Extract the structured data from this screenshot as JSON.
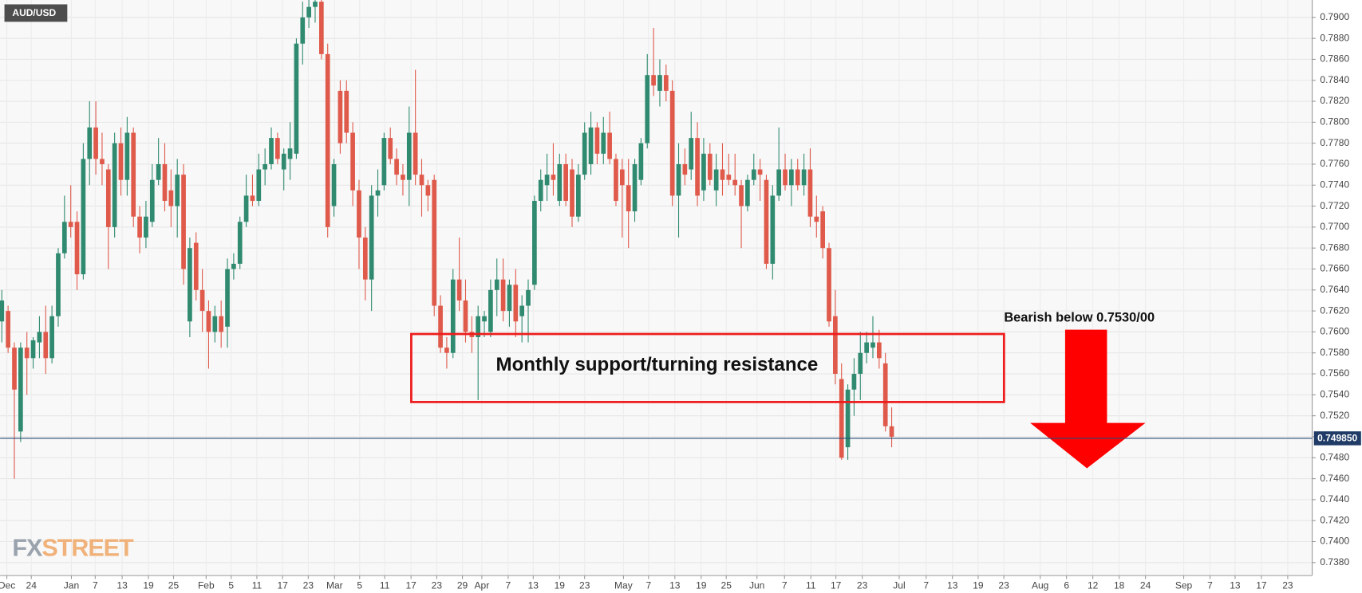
{
  "chart_data": {
    "type": "candlestick",
    "symbol": "AUD/USD",
    "up_color": "#2f8a6f",
    "down_color": "#df5a4b",
    "grid": true,
    "xlim": [
      -0.28,
      209.1
    ],
    "ylim": [
      0.73676,
      0.79166
    ],
    "yticks": [
      {
        "value": 0.738,
        "label": "0.7380"
      },
      {
        "value": 0.74,
        "label": "0.7400"
      },
      {
        "value": 0.742,
        "label": "0.7420"
      },
      {
        "value": 0.744,
        "label": "0.7440"
      },
      {
        "value": 0.746,
        "label": "0.7460"
      },
      {
        "value": 0.748,
        "label": "0.7480"
      },
      {
        "value": 0.75,
        "label": "0.7500"
      },
      {
        "value": 0.752,
        "label": "0.7520"
      },
      {
        "value": 0.754,
        "label": "0.7540"
      },
      {
        "value": 0.756,
        "label": "0.7560"
      },
      {
        "value": 0.758,
        "label": "0.7580"
      },
      {
        "value": 0.76,
        "label": "0.7600"
      },
      {
        "value": 0.762,
        "label": "0.7620"
      },
      {
        "value": 0.764,
        "label": "0.7640"
      },
      {
        "value": 0.766,
        "label": "0.7660"
      },
      {
        "value": 0.768,
        "label": "0.7680"
      },
      {
        "value": 0.77,
        "label": "0.7700"
      },
      {
        "value": 0.772,
        "label": "0.7720"
      },
      {
        "value": 0.774,
        "label": "0.7740"
      },
      {
        "value": 0.776,
        "label": "0.7760"
      },
      {
        "value": 0.778,
        "label": "0.7780"
      },
      {
        "value": 0.78,
        "label": "0.7800"
      },
      {
        "value": 0.782,
        "label": "0.7820"
      },
      {
        "value": 0.784,
        "label": "0.7840"
      },
      {
        "value": 0.786,
        "label": "0.7860"
      },
      {
        "value": 0.788,
        "label": "0.7880"
      },
      {
        "value": 0.79,
        "label": "0.7900"
      }
    ],
    "xticks": [
      {
        "value": 0.8,
        "label": "Dec"
      },
      {
        "value": 4.7,
        "label": "24"
      },
      {
        "value": 11.1,
        "label": "Jan"
      },
      {
        "value": 14.9,
        "label": "7"
      },
      {
        "value": 19.2,
        "label": "13"
      },
      {
        "value": 23.4,
        "label": "19"
      },
      {
        "value": 27.4,
        "label": "25"
      },
      {
        "value": 32.6,
        "label": "Feb"
      },
      {
        "value": 36.6,
        "label": "5"
      },
      {
        "value": 40.7,
        "label": "11"
      },
      {
        "value": 44.8,
        "label": "17"
      },
      {
        "value": 48.9,
        "label": "23"
      },
      {
        "value": 53.1,
        "label": "Mar"
      },
      {
        "value": 57.1,
        "label": "5"
      },
      {
        "value": 61.1,
        "label": "11"
      },
      {
        "value": 65.3,
        "label": "17"
      },
      {
        "value": 69.4,
        "label": "23"
      },
      {
        "value": 73.5,
        "label": "29"
      },
      {
        "value": 76.6,
        "label": "Apr"
      },
      {
        "value": 80.8,
        "label": "7"
      },
      {
        "value": 84.8,
        "label": "13"
      },
      {
        "value": 89.0,
        "label": "19"
      },
      {
        "value": 93.0,
        "label": "23"
      },
      {
        "value": 99.2,
        "label": "May"
      },
      {
        "value": 103.2,
        "label": "7"
      },
      {
        "value": 107.4,
        "label": "13"
      },
      {
        "value": 111.6,
        "label": "19"
      },
      {
        "value": 115.6,
        "label": "25"
      },
      {
        "value": 120.5,
        "label": "Jun"
      },
      {
        "value": 124.9,
        "label": "7"
      },
      {
        "value": 129.1,
        "label": "11"
      },
      {
        "value": 133.1,
        "label": "17"
      },
      {
        "value": 137.3,
        "label": "23"
      },
      {
        "value": 143.2,
        "label": "Jul"
      },
      {
        "value": 147.5,
        "label": "7"
      },
      {
        "value": 151.7,
        "label": "13"
      },
      {
        "value": 155.8,
        "label": "19"
      },
      {
        "value": 159.9,
        "label": "23"
      },
      {
        "value": 165.7,
        "label": "Aug"
      },
      {
        "value": 169.9,
        "label": "6"
      },
      {
        "value": 174.1,
        "label": "12"
      },
      {
        "value": 178.3,
        "label": "18"
      },
      {
        "value": 182.5,
        "label": "24"
      },
      {
        "value": 188.6,
        "label": "Sep"
      },
      {
        "value": 192.8,
        "label": "7"
      },
      {
        "value": 196.8,
        "label": "13"
      },
      {
        "value": 201.0,
        "label": "17"
      },
      {
        "value": 205.2,
        "label": "23"
      }
    ],
    "last_price": {
      "value": 0.74985,
      "label": "0.749850"
    },
    "open": [
      0.761,
      0.762,
      0.7585,
      0.7505,
      0.7585,
      0.7575,
      0.759,
      0.76,
      0.7575,
      0.7615,
      0.7675,
      0.7705,
      0.7705,
      0.7655,
      0.7765,
      0.7795,
      0.7765,
      0.7755,
      0.77,
      0.778,
      0.7745,
      0.779,
      0.771,
      0.769,
      0.7705,
      0.7745,
      0.776,
      0.7735,
      0.772,
      0.775,
      0.761,
      0.7685,
      0.764,
      0.762,
      0.76,
      0.7615,
      0.7605,
      0.766,
      0.7665,
      0.7705,
      0.773,
      0.7725,
      0.7755,
      0.776,
      0.7785,
      0.7755,
      0.7765,
      0.777,
      0.7875,
      0.79,
      0.791,
      0.7915,
      0.7865,
      0.772,
      0.783,
      0.783,
      0.779,
      0.7735,
      0.769,
      0.765,
      0.773,
      0.774,
      0.7785,
      0.7765,
      0.775,
      0.7745,
      0.779,
      0.775,
      0.774,
      0.7745,
      0.7625,
      0.7585,
      0.758,
      0.765,
      0.763,
      0.76,
      0.7595,
      0.761,
      0.76,
      0.764,
      0.765,
      0.762,
      0.7645,
      0.7615,
      0.7625,
      0.7645,
      0.7725,
      0.774,
      0.775,
      0.7725,
      0.776,
      0.7755,
      0.771,
      0.775,
      0.776,
      0.7795,
      0.777,
      0.779,
      0.7765,
      0.7755,
      0.774,
      0.7715,
      0.7745,
      0.778,
      0.7845,
      0.783,
      0.7845,
      0.783,
      0.773,
      0.776,
      0.7755,
      0.7785,
      0.7735,
      0.777,
      0.7735,
      0.7755,
      0.775,
      0.7745,
      0.774,
      0.772,
      0.7745,
      0.7755,
      0.7745,
      0.7665,
      0.773,
      0.7755,
      0.774,
      0.7755,
      0.774,
      0.7755,
      0.771,
      0.7715,
      0.768,
      0.7615,
      0.7555,
      0.749,
      0.7545,
      0.756,
      0.758,
      0.7585,
      0.759,
      0.757,
      0.751
    ],
    "high": [
      0.764,
      0.7625,
      0.759,
      0.759,
      0.76,
      0.7595,
      0.7615,
      0.7625,
      0.7625,
      0.768,
      0.773,
      0.774,
      0.7715,
      0.778,
      0.782,
      0.782,
      0.779,
      0.776,
      0.779,
      0.7795,
      0.7805,
      0.7795,
      0.772,
      0.7725,
      0.776,
      0.7785,
      0.778,
      0.7755,
      0.7765,
      0.776,
      0.769,
      0.7695,
      0.766,
      0.763,
      0.7625,
      0.763,
      0.767,
      0.7675,
      0.771,
      0.775,
      0.775,
      0.777,
      0.7775,
      0.7795,
      0.779,
      0.7775,
      0.78,
      0.788,
      0.7915,
      0.792,
      0.792,
      0.792,
      0.7875,
      0.7765,
      0.784,
      0.784,
      0.78,
      0.7745,
      0.77,
      0.774,
      0.7755,
      0.779,
      0.7795,
      0.7775,
      0.776,
      0.7815,
      0.785,
      0.7765,
      0.7745,
      0.775,
      0.7635,
      0.7595,
      0.766,
      0.769,
      0.765,
      0.7615,
      0.7625,
      0.762,
      0.765,
      0.767,
      0.767,
      0.765,
      0.766,
      0.7635,
      0.765,
      0.773,
      0.7755,
      0.777,
      0.778,
      0.777,
      0.777,
      0.7765,
      0.776,
      0.78,
      0.781,
      0.78,
      0.7805,
      0.781,
      0.777,
      0.7765,
      0.7765,
      0.7765,
      0.7785,
      0.7865,
      0.789,
      0.786,
      0.7855,
      0.784,
      0.778,
      0.7775,
      0.781,
      0.78,
      0.7785,
      0.778,
      0.777,
      0.778,
      0.777,
      0.777,
      0.7745,
      0.775,
      0.777,
      0.7765,
      0.775,
      0.774,
      0.7795,
      0.777,
      0.7765,
      0.7765,
      0.777,
      0.7775,
      0.773,
      0.772,
      0.7685,
      0.764,
      0.757,
      0.755,
      0.7575,
      0.76,
      0.76,
      0.7615,
      0.7602,
      0.758,
      0.7528
    ],
    "low": [
      0.759,
      0.758,
      0.746,
      0.7495,
      0.754,
      0.7565,
      0.7575,
      0.756,
      0.757,
      0.7605,
      0.767,
      0.769,
      0.764,
      0.765,
      0.774,
      0.775,
      0.774,
      0.766,
      0.769,
      0.773,
      0.773,
      0.77,
      0.7675,
      0.768,
      0.77,
      0.774,
      0.7715,
      0.77,
      0.769,
      0.7645,
      0.7595,
      0.763,
      0.76,
      0.7565,
      0.759,
      0.7585,
      0.7585,
      0.765,
      0.766,
      0.77,
      0.772,
      0.772,
      0.774,
      0.7755,
      0.776,
      0.7735,
      0.7745,
      0.7765,
      0.7855,
      0.789,
      0.7895,
      0.786,
      0.769,
      0.771,
      0.777,
      0.778,
      0.772,
      0.766,
      0.763,
      0.762,
      0.771,
      0.7735,
      0.776,
      0.774,
      0.773,
      0.772,
      0.774,
      0.771,
      0.7715,
      0.7615,
      0.758,
      0.7565,
      0.7575,
      0.762,
      0.759,
      0.758,
      0.7535,
      0.7595,
      0.7595,
      0.7615,
      0.761,
      0.7605,
      0.7595,
      0.759,
      0.759,
      0.764,
      0.7715,
      0.7725,
      0.773,
      0.772,
      0.772,
      0.77,
      0.7705,
      0.7745,
      0.775,
      0.776,
      0.776,
      0.776,
      0.772,
      0.769,
      0.768,
      0.7705,
      0.774,
      0.7775,
      0.7825,
      0.7815,
      0.782,
      0.772,
      0.769,
      0.774,
      0.7745,
      0.772,
      0.7725,
      0.774,
      0.772,
      0.773,
      0.774,
      0.773,
      0.768,
      0.7715,
      0.774,
      0.7725,
      0.766,
      0.765,
      0.7725,
      0.7735,
      0.772,
      0.7735,
      0.773,
      0.77,
      0.769,
      0.767,
      0.7605,
      0.755,
      0.7478,
      0.7478,
      0.752,
      0.7535,
      0.757,
      0.7575,
      0.7565,
      0.7505,
      0.749
    ],
    "close": [
      0.763,
      0.7585,
      0.7545,
      0.7585,
      0.7575,
      0.7592,
      0.76,
      0.7575,
      0.7615,
      0.7675,
      0.7705,
      0.77,
      0.7655,
      0.7765,
      0.7795,
      0.7765,
      0.776,
      0.77,
      0.778,
      0.7745,
      0.779,
      0.771,
      0.769,
      0.771,
      0.7745,
      0.776,
      0.7725,
      0.772,
      0.775,
      0.766,
      0.768,
      0.764,
      0.762,
      0.76,
      0.7615,
      0.76,
      0.766,
      0.7665,
      0.7705,
      0.773,
      0.7725,
      0.7755,
      0.776,
      0.7785,
      0.7765,
      0.777,
      0.7775,
      0.7875,
      0.79,
      0.791,
      0.7915,
      0.7865,
      0.77,
      0.776,
      0.778,
      0.779,
      0.7735,
      0.769,
      0.765,
      0.773,
      0.7735,
      0.7785,
      0.7765,
      0.775,
      0.7745,
      0.779,
      0.775,
      0.774,
      0.773,
      0.7625,
      0.7585,
      0.758,
      0.765,
      0.763,
      0.76,
      0.7595,
      0.7615,
      0.7615,
      0.764,
      0.765,
      0.762,
      0.7645,
      0.761,
      0.7625,
      0.764,
      0.7725,
      0.7745,
      0.775,
      0.7745,
      0.776,
      0.7725,
      0.771,
      0.775,
      0.779,
      0.7795,
      0.777,
      0.779,
      0.7765,
      0.7725,
      0.774,
      0.7715,
      0.776,
      0.778,
      0.7845,
      0.7835,
      0.7845,
      0.783,
      0.773,
      0.776,
      0.775,
      0.7785,
      0.773,
      0.777,
      0.7745,
      0.7755,
      0.7745,
      0.7745,
      0.774,
      0.772,
      0.7745,
      0.7755,
      0.775,
      0.7665,
      0.773,
      0.7755,
      0.774,
      0.7755,
      0.774,
      0.7755,
      0.771,
      0.7705,
      0.768,
      0.761,
      0.756,
      0.748,
      0.7545,
      0.756,
      0.758,
      0.759,
      0.759,
      0.7575,
      0.751,
      0.75
    ],
    "annotations": [
      "Monthly support/turning resistance",
      "Bearish below 0.7530/00"
    ],
    "watermark": [
      "FX",
      "STREET"
    ]
  }
}
